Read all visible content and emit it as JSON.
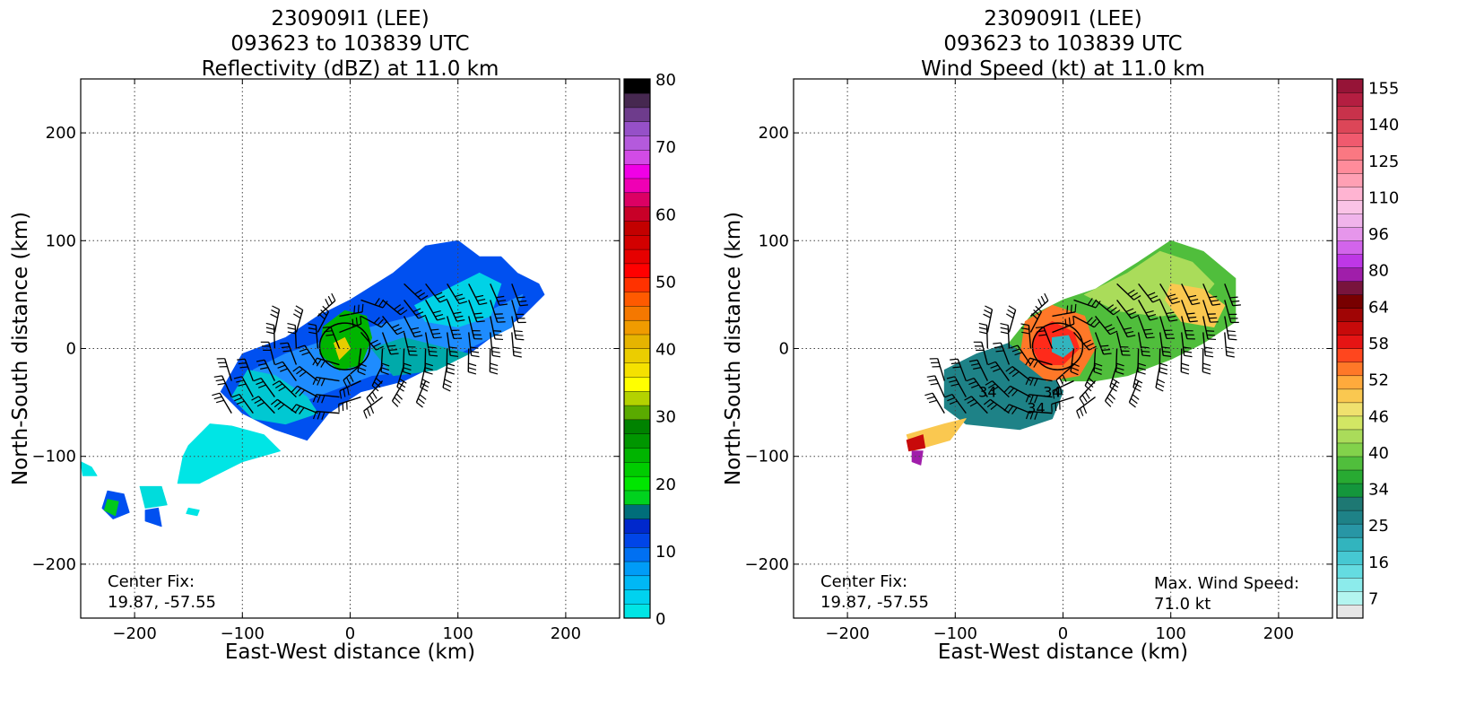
{
  "chart_data": [
    {
      "type": "heatmap",
      "title_lines": [
        "230909I1 (LEE)",
        "093623 to 103839 UTC",
        "Reflectivity (dBZ) at 11.0 km"
      ],
      "xlabel": "East-West distance (km)",
      "ylabel": "North-South distance (km)",
      "xlim": [
        -250,
        250
      ],
      "ylim": [
        -250,
        250
      ],
      "xticks": [
        -200,
        -100,
        0,
        100,
        200
      ],
      "yticks": [
        -200,
        -100,
        0,
        100,
        200
      ],
      "xtick_labels": [
        "−200",
        "−100",
        "0",
        "100",
        "200"
      ],
      "ytick_labels": [
        "−200",
        "−100",
        "0",
        "100",
        "200"
      ],
      "grid": true,
      "annotation_lines": [
        "Center Fix:",
        "19.87, -57.55"
      ],
      "colorbar": {
        "vmin": 0,
        "vmax": 80,
        "tick_values": [
          0,
          10,
          20,
          30,
          40,
          50,
          60,
          70,
          80
        ],
        "tick_labels": [
          "0",
          "10",
          "20",
          "30",
          "40",
          "50",
          "60",
          "70",
          "80"
        ],
        "colors": [
          "#00e5e5",
          "#00d2ef",
          "#00b8f5",
          "#009cf7",
          "#0070f2",
          "#0045e8",
          "#0028cc",
          "#006e7a",
          "#00d21e",
          "#00e600",
          "#00cc00",
          "#00b400",
          "#009600",
          "#008200",
          "#5aaa00",
          "#b4d200",
          "#ffff00",
          "#f5e100",
          "#ebcd00",
          "#e6b400",
          "#f09b00",
          "#f57800",
          "#ff5a00",
          "#ff3200",
          "#ff0000",
          "#e60000",
          "#d20000",
          "#c30000",
          "#c80028",
          "#dc0064",
          "#ef00b4",
          "#f000e6",
          "#d24be6",
          "#b45adc",
          "#9650c8",
          "#6e3c8c",
          "#462850",
          "#000000"
        ]
      }
    },
    {
      "type": "heatmap",
      "title_lines": [
        "230909I1 (LEE)",
        "093623 to 103839 UTC",
        "Wind Speed (kt) at 11.0 km"
      ],
      "xlabel": "East-West distance (km)",
      "ylabel": "North-South distance (km)",
      "xlim": [
        -250,
        250
      ],
      "ylim": [
        -250,
        250
      ],
      "xticks": [
        -200,
        -100,
        0,
        100,
        200
      ],
      "yticks": [
        -200,
        -100,
        0,
        100,
        200
      ],
      "xtick_labels": [
        "−200",
        "−100",
        "0",
        "100",
        "200"
      ],
      "ytick_labels": [
        "−200",
        "−100",
        "0",
        "100",
        "200"
      ],
      "grid": true,
      "annotation_lines": [
        "Center Fix:",
        "19.87, -57.55"
      ],
      "annotation_right_lines": [
        "Max. Wind Speed:",
        "71.0 kt"
      ],
      "contour_labels": [
        "34",
        "34",
        "34"
      ],
      "colorbar": {
        "tick_labels": [
          "7",
          "16",
          "25",
          "34",
          "40",
          "46",
          "52",
          "58",
          "64",
          "80",
          "96",
          "110",
          "125",
          "140",
          "155"
        ],
        "colors": [
          "#e6e6e6",
          "#b4f5f0",
          "#8cebeb",
          "#64dce1",
          "#46c8d2",
          "#32b4be",
          "#2896a5",
          "#1e8287",
          "#1e7873",
          "#14963c",
          "#28aa32",
          "#50be3c",
          "#82d24b",
          "#aadc5a",
          "#d2e664",
          "#f0e16e",
          "#fac850",
          "#ffaa3c",
          "#ff7828",
          "#ff461e",
          "#e61414",
          "#c80a0a",
          "#a00505",
          "#780000",
          "#78143c",
          "#a01eaa",
          "#be37e6",
          "#d264eb",
          "#e696eb",
          "#f0b4eb",
          "#fac3e6",
          "#ffb4d2",
          "#ffa0b4",
          "#ff8c9b",
          "#fa7882",
          "#f05a6e",
          "#dc4658",
          "#c8324b",
          "#b41e41",
          "#961437"
        ]
      }
    }
  ]
}
